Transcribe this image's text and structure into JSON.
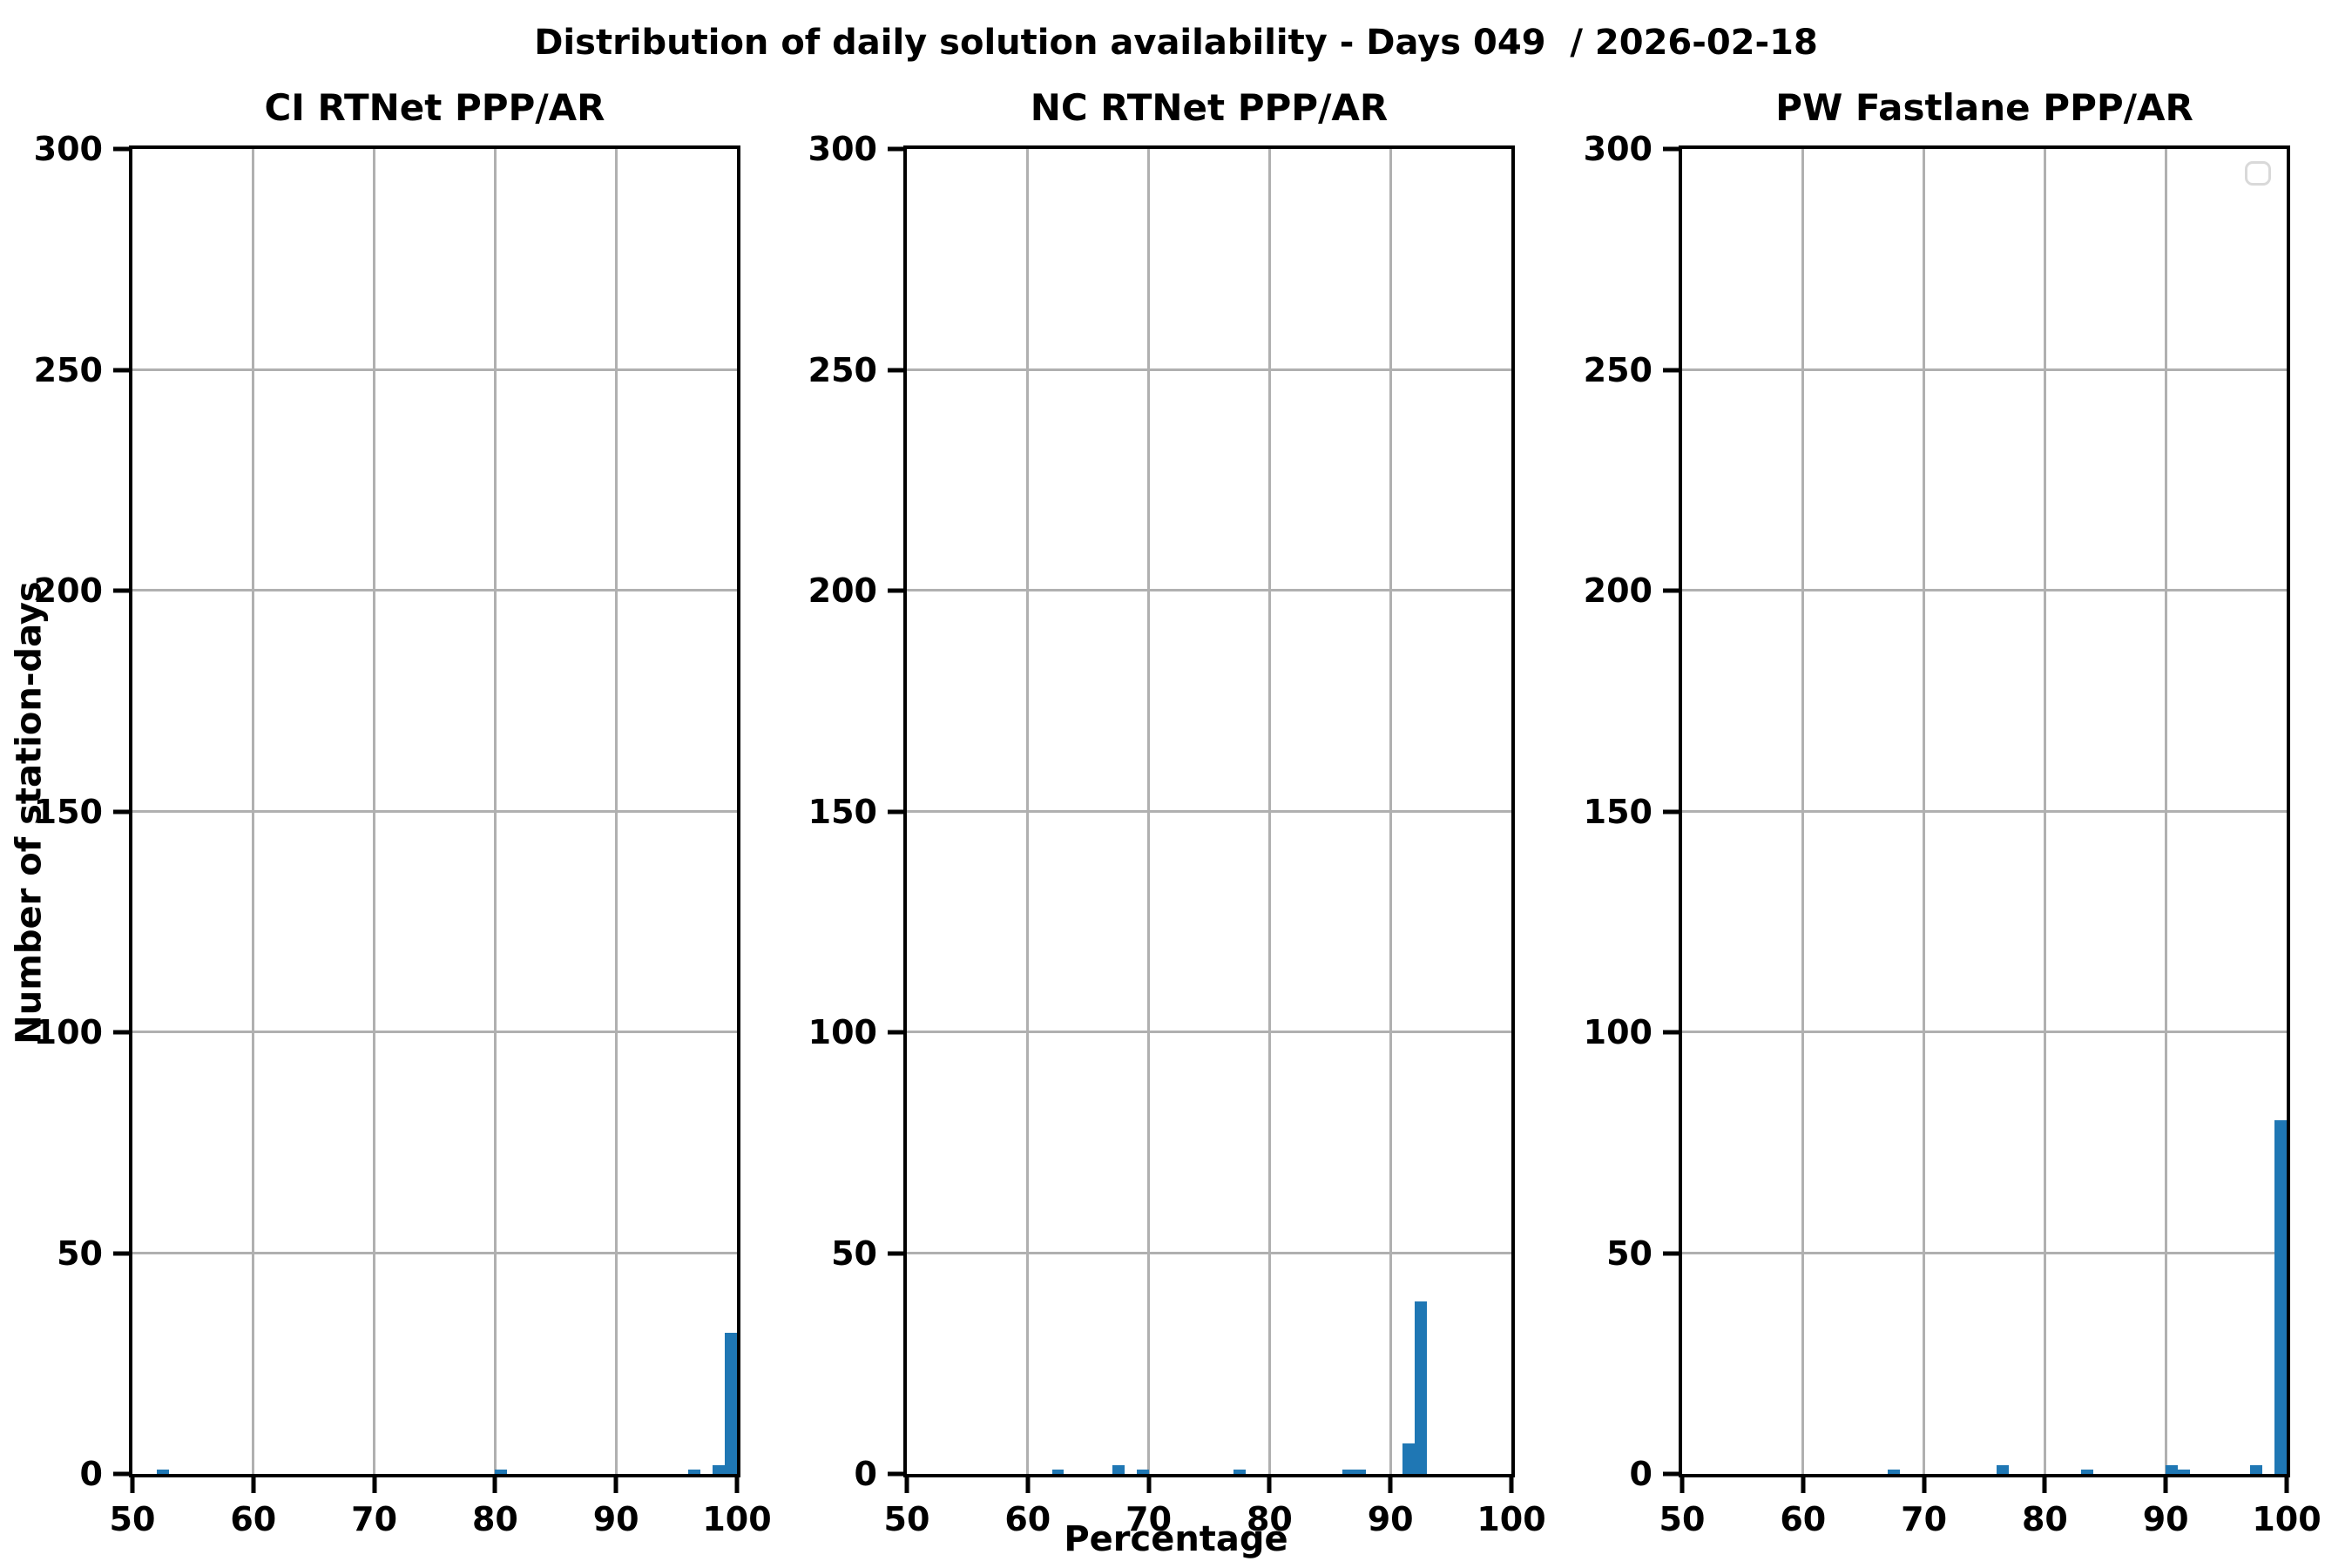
{
  "figure": {
    "title": "Distribution of daily solution availability - Days 049  / 2026-02-18",
    "xlabel": "Percentage",
    "ylabel": "Number of station-days",
    "background_color": "#ffffff",
    "bar_color": "#1f77b4",
    "grid_color": "#b0b0b0",
    "axis_color": "#000000"
  },
  "chart_data": [
    {
      "type": "bar",
      "title": "CI RTNet PPP/AR",
      "xlabel": "Percentage",
      "ylabel": "Number of station-days",
      "xlim": [
        50,
        100
      ],
      "ylim": [
        0,
        300
      ],
      "xticks": [
        50,
        60,
        70,
        80,
        90,
        100
      ],
      "yticks": [
        0,
        50,
        100,
        150,
        200,
        250,
        300
      ],
      "grid": true,
      "legend_empty": false,
      "bins": [
        {
          "x0": 52,
          "x1": 53,
          "count": 1
        },
        {
          "x0": 80,
          "x1": 81,
          "count": 1
        },
        {
          "x0": 96,
          "x1": 97,
          "count": 1
        },
        {
          "x0": 98,
          "x1": 99,
          "count": 2
        },
        {
          "x0": 99,
          "x1": 100,
          "count": 32
        }
      ]
    },
    {
      "type": "bar",
      "title": "NC RTNet PPP/AR",
      "xlabel": "Percentage",
      "ylabel": "Number of station-days",
      "xlim": [
        50,
        100
      ],
      "ylim": [
        0,
        300
      ],
      "xticks": [
        50,
        60,
        70,
        80,
        90,
        100
      ],
      "yticks": [
        0,
        50,
        100,
        150,
        200,
        250,
        300
      ],
      "grid": true,
      "legend_empty": false,
      "bins": [
        {
          "x0": 62,
          "x1": 63,
          "count": 1
        },
        {
          "x0": 67,
          "x1": 68,
          "count": 2
        },
        {
          "x0": 69,
          "x1": 70,
          "count": 1
        },
        {
          "x0": 77,
          "x1": 78,
          "count": 1
        },
        {
          "x0": 86,
          "x1": 87,
          "count": 1
        },
        {
          "x0": 87,
          "x1": 88,
          "count": 1
        },
        {
          "x0": 91,
          "x1": 92,
          "count": 7
        },
        {
          "x0": 92,
          "x1": 93,
          "count": 39
        }
      ]
    },
    {
      "type": "bar",
      "title": "PW Fastlane PPP/AR",
      "xlabel": "Percentage",
      "ylabel": "Number of station-days",
      "xlim": [
        50,
        100
      ],
      "ylim": [
        0,
        300
      ],
      "xticks": [
        50,
        60,
        70,
        80,
        90,
        100
      ],
      "yticks": [
        0,
        50,
        100,
        150,
        200,
        250,
        300
      ],
      "grid": true,
      "legend_empty": true,
      "bins": [
        {
          "x0": 67,
          "x1": 68,
          "count": 1
        },
        {
          "x0": 76,
          "x1": 77,
          "count": 2
        },
        {
          "x0": 83,
          "x1": 84,
          "count": 1
        },
        {
          "x0": 90,
          "x1": 91,
          "count": 2
        },
        {
          "x0": 91,
          "x1": 92,
          "count": 1
        },
        {
          "x0": 97,
          "x1": 98,
          "count": 2
        },
        {
          "x0": 99,
          "x1": 100,
          "count": 80
        }
      ]
    }
  ],
  "layout": {
    "plot_lefts": [
      152,
      1041,
      1931
    ]
  }
}
